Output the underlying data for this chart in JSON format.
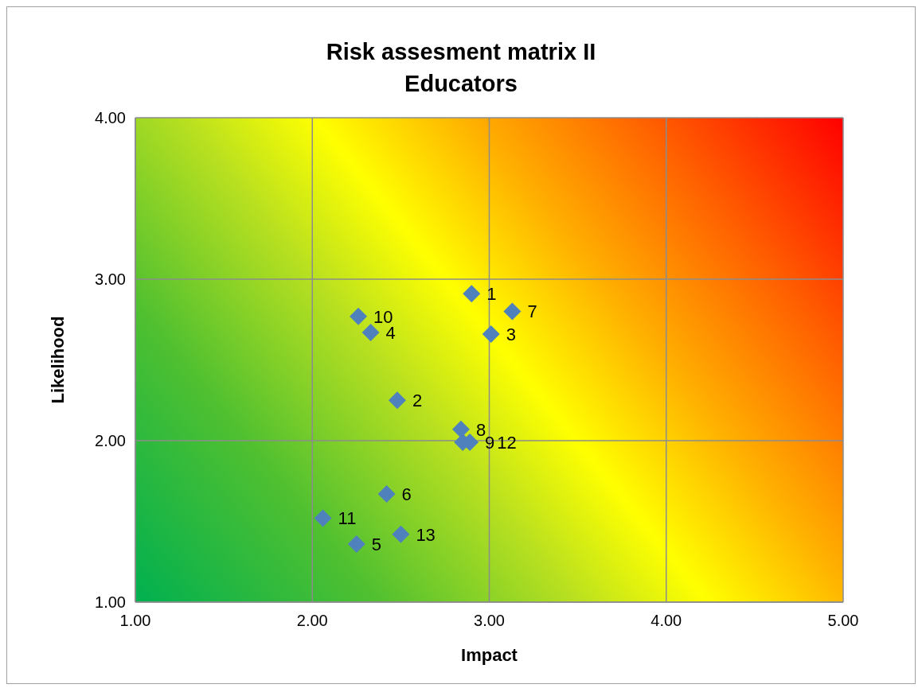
{
  "chart_data": {
    "type": "scatter",
    "title": "Risk assesment matrix II",
    "subtitle": "Educators",
    "xlabel": "Impact",
    "ylabel": "Likelihood",
    "x": [
      2.9,
      2.48,
      3.01,
      2.33,
      2.25,
      2.42,
      3.13,
      2.84,
      2.89,
      2.26,
      2.06,
      2.85,
      2.5
    ],
    "series": [
      {
        "color": "#4f81bd",
        "values": [
          2.91,
          2.25,
          2.66,
          2.67,
          1.36,
          1.67,
          2.8,
          2.07,
          1.99,
          2.77,
          1.52,
          1.99,
          1.42
        ]
      }
    ],
    "annotations": [
      {
        "text": "1",
        "x": 2.9,
        "y": 2.91
      },
      {
        "text": "2",
        "x": 2.48,
        "y": 2.25
      },
      {
        "text": "3",
        "x": 3.01,
        "y": 2.66
      },
      {
        "text": "4",
        "x": 2.33,
        "y": 2.67
      },
      {
        "text": "5",
        "x": 2.25,
        "y": 1.36
      },
      {
        "text": "6",
        "x": 2.42,
        "y": 1.67
      },
      {
        "text": "7",
        "x": 3.13,
        "y": 2.8
      },
      {
        "text": "8",
        "x": 2.84,
        "y": 2.07
      },
      {
        "text": "9",
        "x": 2.89,
        "y": 1.99
      },
      {
        "text": "10",
        "x": 2.26,
        "y": 2.77
      },
      {
        "text": "11",
        "x": 2.06,
        "y": 1.52
      },
      {
        "text": "12",
        "x": 2.85,
        "y": 1.99
      },
      {
        "text": "13",
        "x": 2.5,
        "y": 1.42
      }
    ],
    "xlim": [
      1,
      5
    ],
    "xticks": [
      {
        "value": 1,
        "label": "1.00"
      },
      {
        "value": 2,
        "label": "2.00"
      },
      {
        "value": 3,
        "label": "3.00"
      },
      {
        "value": 4,
        "label": "4.00"
      },
      {
        "value": 5,
        "label": "5.00"
      }
    ],
    "ylim": [
      1,
      4
    ],
    "yticks": [
      {
        "value": 1,
        "label": "1.00"
      },
      {
        "value": 2,
        "label": "2.00"
      },
      {
        "value": 3,
        "label": "3.00"
      },
      {
        "value": 4,
        "label": "4.00"
      }
    ],
    "grid": true,
    "marker": "diamond"
  }
}
